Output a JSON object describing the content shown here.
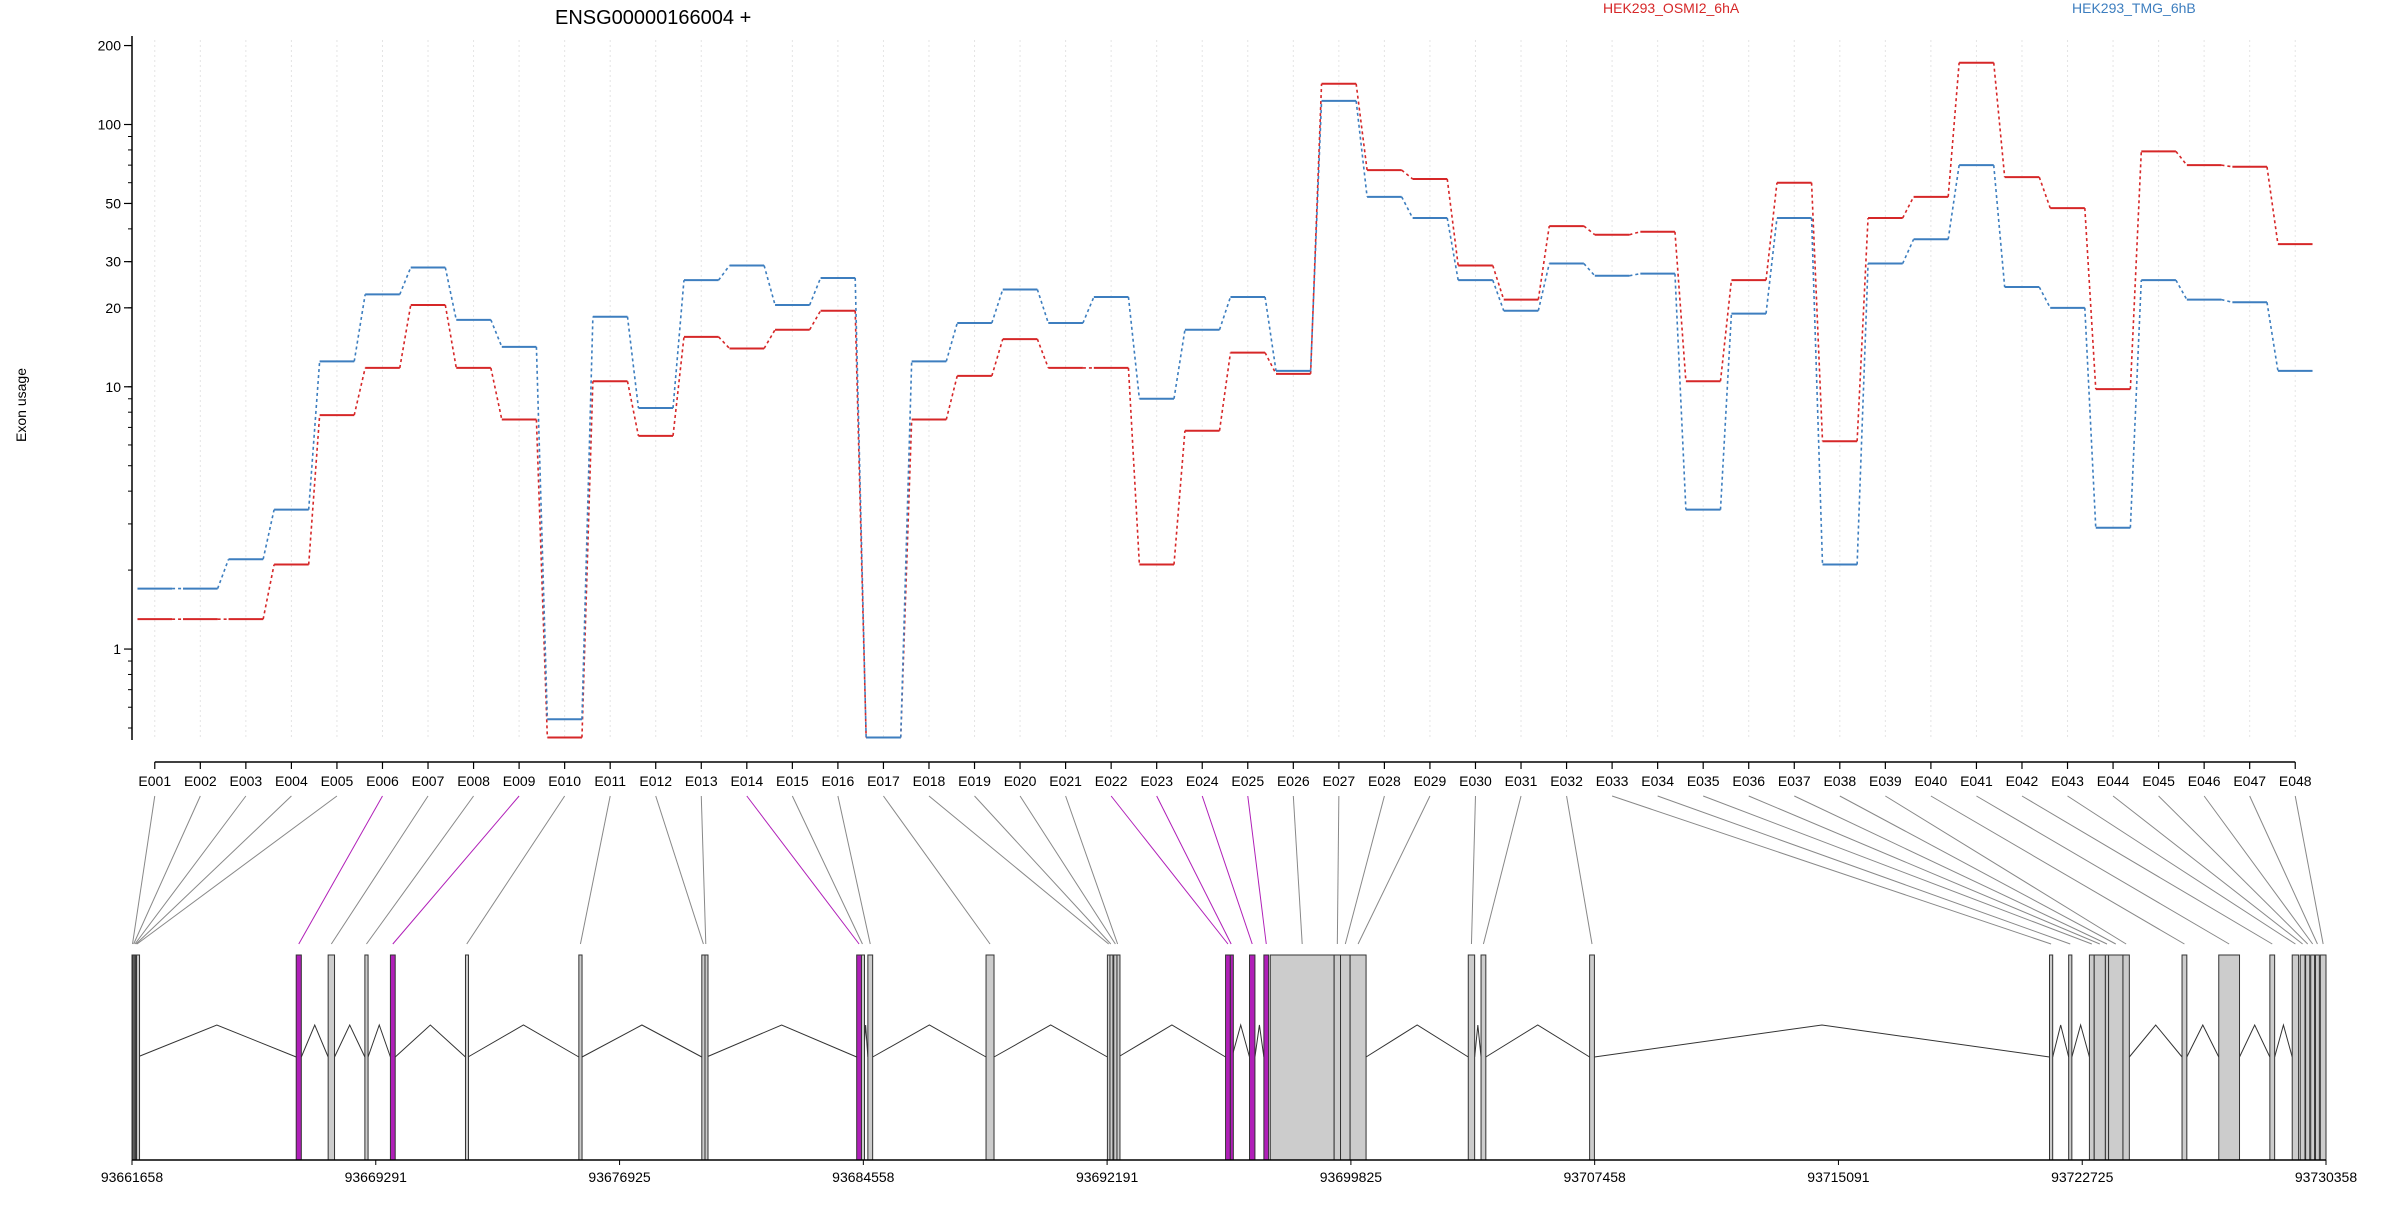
{
  "chart_data": {
    "type": "line",
    "title": "ENSG00000166004 +",
    "ylabel": "Exon usage",
    "yscale": "log",
    "ylim": [
      0.45,
      210
    ],
    "yticks": [
      1,
      10,
      20,
      30,
      50,
      100,
      200
    ],
    "grid": "vertical dotted",
    "legend_position": "top",
    "colors": {
      "red": "#d62728",
      "blue": "#3d7ebf",
      "spliced": "#b01fb8",
      "exon": "#cccccc"
    },
    "categories": [
      "E001",
      "E002",
      "E003",
      "E004",
      "E005",
      "E006",
      "E007",
      "E008",
      "E009",
      "E010",
      "E011",
      "E012",
      "E013",
      "E014",
      "E015",
      "E016",
      "E017",
      "E018",
      "E019",
      "E020",
      "E021",
      "E022",
      "E023",
      "E024",
      "E025",
      "E026",
      "E027",
      "E028",
      "E029",
      "E030",
      "E031",
      "E032",
      "E033",
      "E034",
      "E035",
      "E036",
      "E037",
      "E038",
      "E039",
      "E040",
      "E041",
      "E042",
      "E043",
      "E044",
      "E045",
      "E046",
      "E047",
      "E048"
    ],
    "series": [
      {
        "name": "HEK293_OSMI2_6hA",
        "color": "#d62728",
        "values": [
          1.3,
          1.3,
          1.3,
          2.1,
          7.8,
          11.8,
          20.5,
          11.8,
          7.5,
          0.46,
          10.5,
          6.5,
          15.5,
          14,
          16.5,
          19.5,
          0.46,
          7.5,
          11,
          15.2,
          11.8,
          11.8,
          2.1,
          6.8,
          13.5,
          11.2,
          143,
          67,
          62,
          29,
          21.5,
          41,
          38,
          39,
          10.5,
          25.5,
          60,
          6.2,
          44,
          53,
          172,
          63,
          48,
          9.8,
          79,
          70,
          69,
          35
        ]
      },
      {
        "name": "HEK293_TMG_6hB",
        "color": "#3d7ebf",
        "values": [
          1.7,
          1.7,
          2.2,
          3.4,
          12.5,
          22.5,
          28.5,
          18,
          14.2,
          0.54,
          18.5,
          8.3,
          25.5,
          29,
          20.5,
          26,
          0.46,
          12.5,
          17.5,
          23.5,
          17.5,
          22,
          9,
          16.5,
          22,
          11.5,
          123,
          53,
          44,
          25.5,
          19.5,
          29.5,
          26.5,
          27,
          3.4,
          19,
          44,
          2.1,
          29.5,
          36.5,
          70,
          24,
          20,
          2.9,
          25.5,
          21.5,
          21,
          11.5
        ]
      }
    ],
    "gene_model": {
      "coordinates": [
        "93661658",
        "93669291",
        "93676925",
        "93684558",
        "93692191",
        "93699825",
        "93707458",
        "93715091",
        "93722725",
        "93730358"
      ],
      "coord_min": 93661658,
      "coord_max": 93730358,
      "exons": [
        {
          "id": "E001",
          "start": 93661658,
          "end": 93661690,
          "highlight": false
        },
        {
          "id": "E002",
          "start": 93661690,
          "end": 93661730,
          "highlight": false
        },
        {
          "id": "E003",
          "start": 93661730,
          "end": 93661770,
          "highlight": false
        },
        {
          "id": "E004",
          "start": 93661770,
          "end": 93661800,
          "highlight": false
        },
        {
          "id": "E005",
          "start": 93661800,
          "end": 93661830,
          "highlight": false
        },
        {
          "id": "E006",
          "start": 93666800,
          "end": 93666960,
          "highlight": true
        },
        {
          "id": "E007",
          "start": 93667800,
          "end": 93668000,
          "highlight": false
        },
        {
          "id": "E008",
          "start": 93668950,
          "end": 93669050,
          "highlight": false
        },
        {
          "id": "E009",
          "start": 93669750,
          "end": 93669900,
          "highlight": true
        },
        {
          "id": "E010",
          "start": 93672100,
          "end": 93672180,
          "highlight": false
        },
        {
          "id": "E011",
          "start": 93675650,
          "end": 93675750,
          "highlight": false
        },
        {
          "id": "E012",
          "start": 93679500,
          "end": 93679600,
          "highlight": false
        },
        {
          "id": "E013",
          "start": 93679600,
          "end": 93679650,
          "highlight": false
        },
        {
          "id": "E014",
          "start": 93684350,
          "end": 93684500,
          "highlight": true
        },
        {
          "id": "E015",
          "start": 93684500,
          "end": 93684560,
          "highlight": false
        },
        {
          "id": "E016",
          "start": 93684700,
          "end": 93684850,
          "highlight": false
        },
        {
          "id": "E017",
          "start": 93688400,
          "end": 93688650,
          "highlight": false
        },
        {
          "id": "E018",
          "start": 93692200,
          "end": 93692280,
          "highlight": false
        },
        {
          "id": "E019",
          "start": 93692280,
          "end": 93692330,
          "highlight": false
        },
        {
          "id": "E020",
          "start": 93692400,
          "end": 93692500,
          "highlight": false
        },
        {
          "id": "E021",
          "start": 93692500,
          "end": 93692540,
          "highlight": false
        },
        {
          "id": "E022",
          "start": 93695900,
          "end": 93696050,
          "highlight": true
        },
        {
          "id": "E023",
          "start": 93696050,
          "end": 93696100,
          "highlight": true
        },
        {
          "id": "E024",
          "start": 93696650,
          "end": 93696820,
          "highlight": true
        },
        {
          "id": "E025",
          "start": 93697100,
          "end": 93697250,
          "highlight": true
        },
        {
          "id": "E026",
          "start": 93697300,
          "end": 93699300,
          "highlight": false
        },
        {
          "id": "E027",
          "start": 93699300,
          "end": 93699500,
          "highlight": false
        },
        {
          "id": "E028",
          "start": 93699500,
          "end": 93699800,
          "highlight": false
        },
        {
          "id": "E029",
          "start": 93699800,
          "end": 93700300,
          "highlight": false
        },
        {
          "id": "E030",
          "start": 93703500,
          "end": 93703700,
          "highlight": false
        },
        {
          "id": "E031",
          "start": 93703900,
          "end": 93704050,
          "highlight": false
        },
        {
          "id": "E032",
          "start": 93707300,
          "end": 93707450,
          "highlight": false
        },
        {
          "id": "E033",
          "start": 93721700,
          "end": 93721800,
          "highlight": false
        },
        {
          "id": "E034",
          "start": 93722300,
          "end": 93722400,
          "highlight": false
        },
        {
          "id": "E035",
          "start": 93722950,
          "end": 93723100,
          "highlight": false
        },
        {
          "id": "E036",
          "start": 93723100,
          "end": 93723450,
          "highlight": false
        },
        {
          "id": "E037",
          "start": 93723450,
          "end": 93723550,
          "highlight": false
        },
        {
          "id": "E038",
          "start": 93723550,
          "end": 93724000,
          "highlight": false
        },
        {
          "id": "E039",
          "start": 93724000,
          "end": 93724200,
          "highlight": false
        },
        {
          "id": "E040",
          "start": 93725850,
          "end": 93726000,
          "highlight": false
        },
        {
          "id": "E041",
          "start": 93727000,
          "end": 93727650,
          "highlight": false
        },
        {
          "id": "E042",
          "start": 93728600,
          "end": 93728750,
          "highlight": false
        },
        {
          "id": "E043",
          "start": 93729300,
          "end": 93729500,
          "highlight": false
        },
        {
          "id": "E044",
          "start": 93729550,
          "end": 93729700,
          "highlight": false
        },
        {
          "id": "E045",
          "start": 93729720,
          "end": 93729850,
          "highlight": false
        },
        {
          "id": "E046",
          "start": 93729880,
          "end": 93730000,
          "highlight": false
        },
        {
          "id": "E047",
          "start": 93730030,
          "end": 93730150,
          "highlight": false
        },
        {
          "id": "E048",
          "start": 93730180,
          "end": 93730358,
          "highlight": false
        }
      ]
    }
  }
}
